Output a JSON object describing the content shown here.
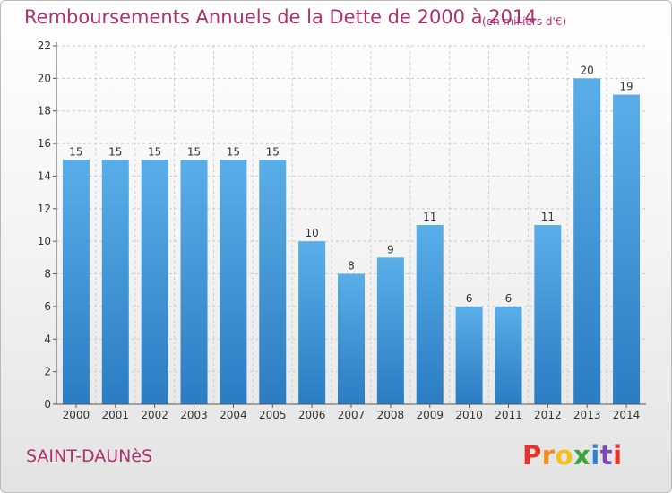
{
  "header": {
    "title": "Remboursements Annuels de la Dette de 2000 à 2014",
    "subtitle": "(en milliers d'€)"
  },
  "footer": {
    "place": "SAINT-DAUNèS",
    "logo_letters": [
      "P",
      "r",
      "o",
      "x",
      "i",
      "t",
      "i"
    ],
    "logo_colors": [
      "#e8322a",
      "#f28c1b",
      "#f2c21b",
      "#3aa53a",
      "#2f7fd0",
      "#7a48b8",
      "#e8322a"
    ]
  },
  "colors": {
    "bar_light": "#5aaee8",
    "bar_dark": "#2b7cc2",
    "grid": "#cccccc",
    "axis": "#555555",
    "accent": "#b0306e"
  },
  "chart_data": {
    "type": "bar",
    "categories": [
      "2000",
      "2001",
      "2002",
      "2003",
      "2004",
      "2005",
      "2006",
      "2007",
      "2008",
      "2009",
      "2010",
      "2011",
      "2012",
      "2013",
      "2014"
    ],
    "values": [
      15,
      15,
      15,
      15,
      15,
      15,
      10,
      8,
      9,
      11,
      6,
      6,
      11,
      20,
      19
    ],
    "title": "Remboursements Annuels de la Dette de 2000 à 2014",
    "xlabel": "",
    "ylabel": "",
    "ylim": [
      0,
      22
    ],
    "yticks": [
      0,
      2,
      4,
      6,
      8,
      10,
      12,
      14,
      16,
      18,
      20,
      22
    ],
    "grid": true,
    "legend": "none"
  }
}
